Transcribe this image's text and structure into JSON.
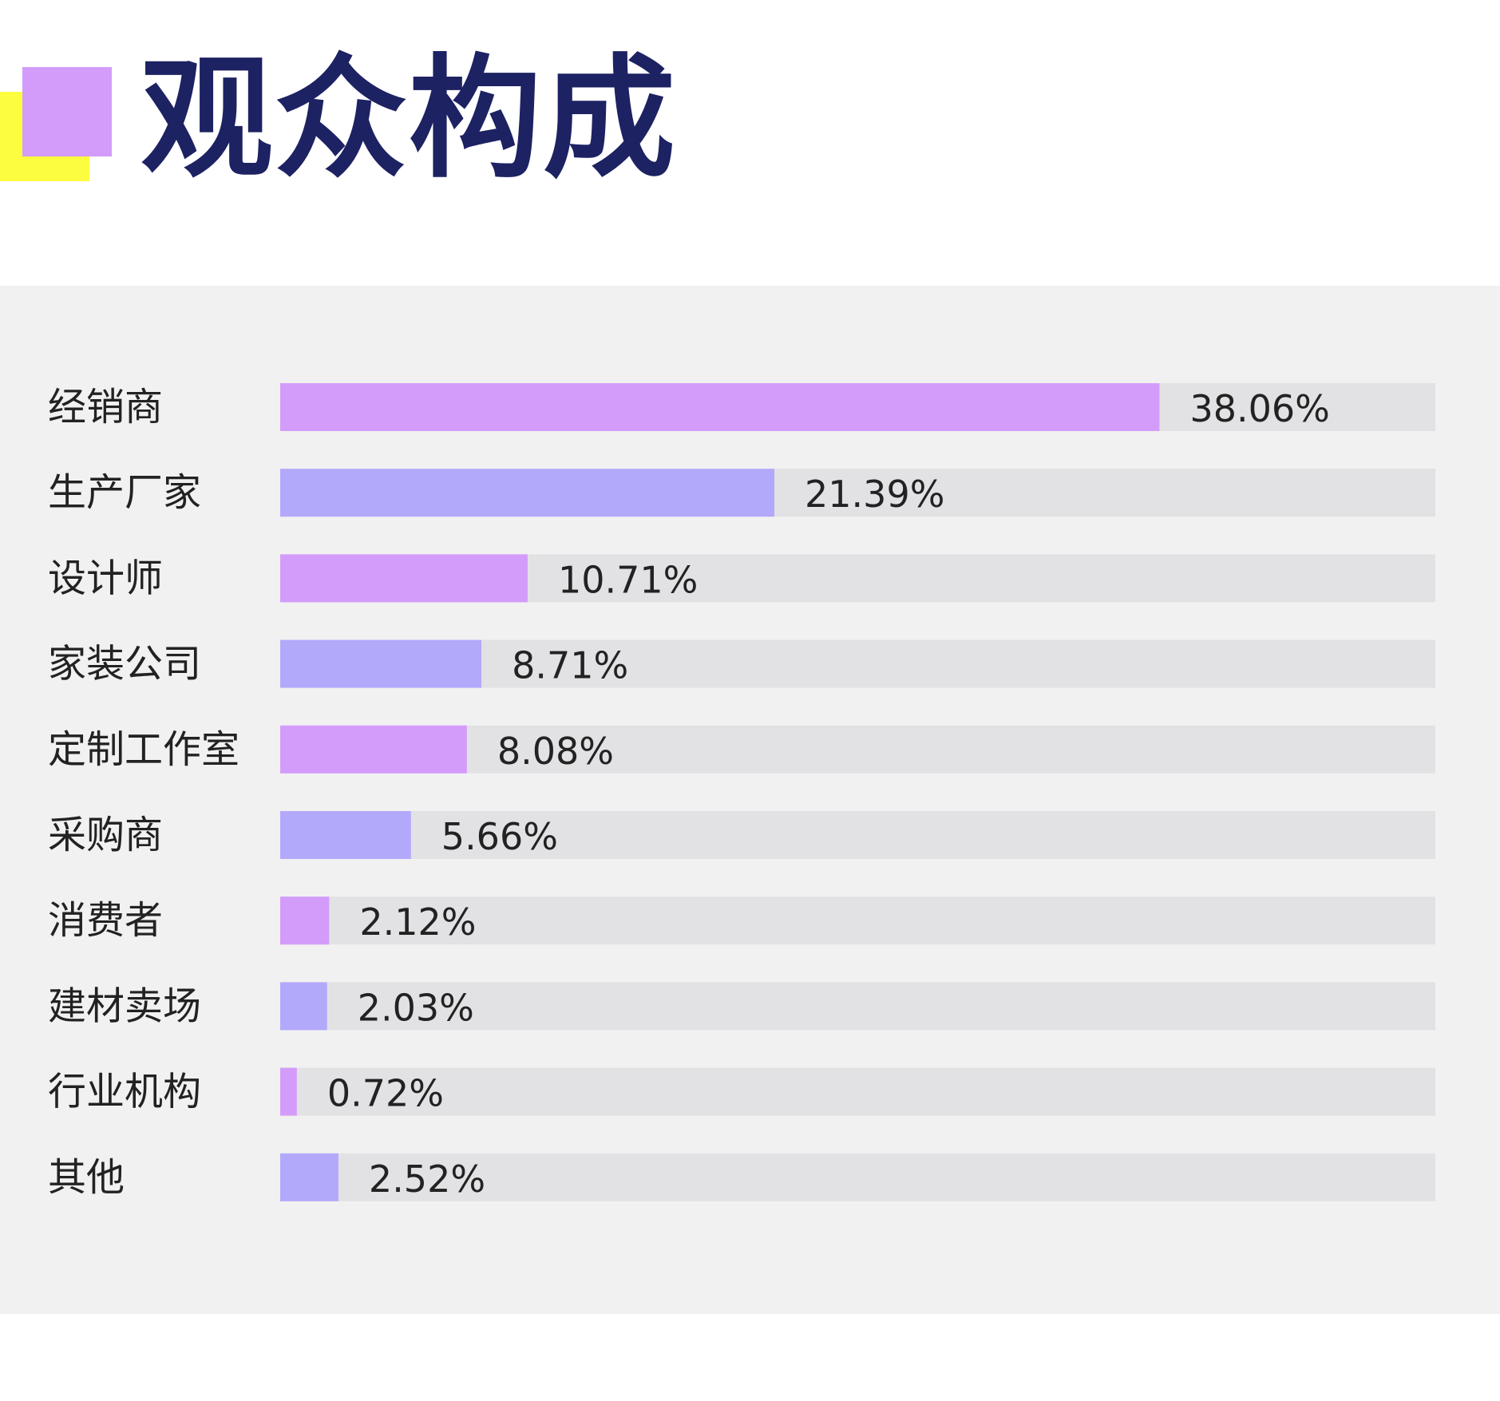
{
  "page": {
    "title": "观众构成"
  },
  "colors": {
    "title": "#1c2262",
    "accent_yellow": "#fdfd3f",
    "accent_purple": "#d39cfa",
    "bar_odd": "#d39cfa",
    "bar_even": "#b3a9fb",
    "track": "#e2e2e4",
    "panel": "#f1f1f1",
    "text": "#222222"
  },
  "chart_data": {
    "type": "bar",
    "orientation": "horizontal",
    "categories": [
      "经销商",
      "生产厂家",
      "设计师",
      "家装公司",
      "定制工作室",
      "采购商",
      "消费者",
      "建材卖场",
      "行业机构",
      "其他"
    ],
    "values": [
      38.06,
      21.39,
      10.71,
      8.71,
      8.08,
      5.66,
      2.12,
      2.03,
      0.72,
      2.52
    ],
    "value_labels": [
      "38.06%",
      "21.39%",
      "10.71%",
      "8.71%",
      "8.08%",
      "5.66%",
      "2.12%",
      "2.03%",
      "0.72%",
      "2.52%"
    ],
    "unit": "%",
    "xlim": [
      0,
      50
    ],
    "grid": false,
    "legend": "none"
  }
}
